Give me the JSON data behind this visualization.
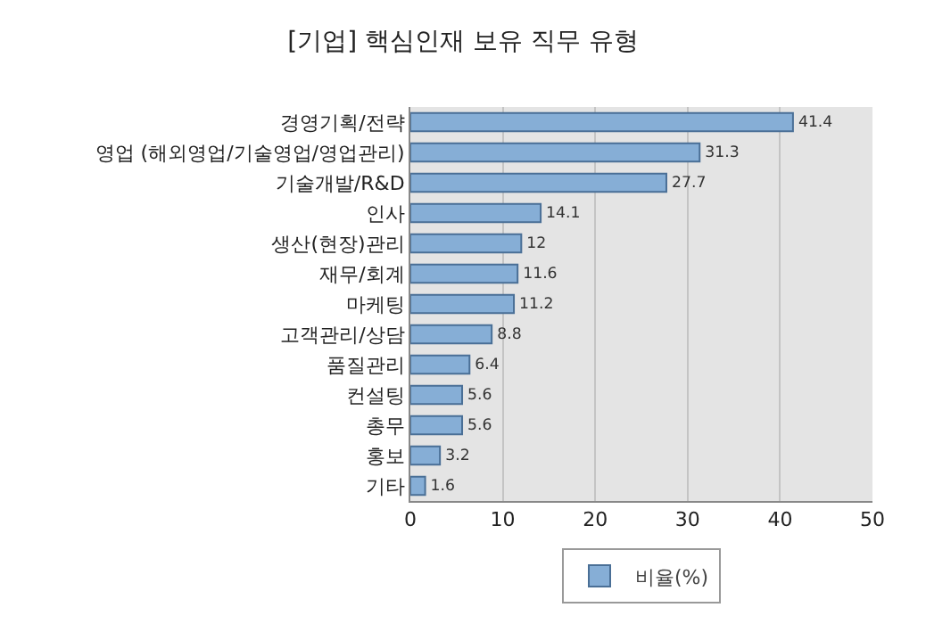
{
  "chart_data": {
    "type": "bar",
    "orientation": "horizontal",
    "title": "[기업] 핵심인재 보유 직무 유형",
    "categories": [
      "경영기획/전략",
      "영업 (해외영업/기술영업/영업관리)",
      "기술개발/R&D",
      "인사",
      "생산(현장)관리",
      "재무/회계",
      "마케팅",
      "고객관리/상담",
      "품질관리",
      "컨설팅",
      "총무",
      "홍보",
      "기타"
    ],
    "series": [
      {
        "name": "비율(%)",
        "color": "#86aed6",
        "values": [
          41.4,
          31.3,
          27.7,
          14.1,
          12,
          11.6,
          11.2,
          8.8,
          6.4,
          5.6,
          5.6,
          3.2,
          1.6
        ]
      }
    ],
    "xlim": [
      0,
      50
    ],
    "xticks": [
      0,
      10,
      20,
      30,
      40,
      50
    ],
    "grid": "x",
    "legend": "bottom",
    "data_labels": true
  }
}
